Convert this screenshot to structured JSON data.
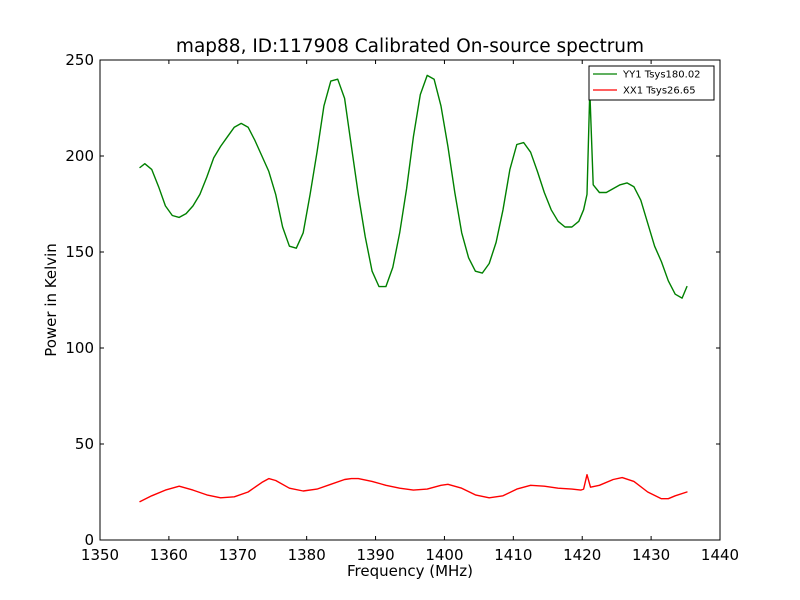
{
  "chart_data": {
    "type": "line",
    "title": "map88, ID:117908 Calibrated On-source spectrum",
    "xlabel": "Frequency (MHz)",
    "ylabel": "Power in Kelvin",
    "xlim": [
      1350,
      1440
    ],
    "ylim": [
      0,
      250
    ],
    "xticks": [
      "1350",
      "1360",
      "1370",
      "1380",
      "1390",
      "1400",
      "1410",
      "1420",
      "1430",
      "1440"
    ],
    "yticks": [
      "0",
      "50",
      "100",
      "150",
      "200",
      "250"
    ],
    "grid": false,
    "legend_position": "top-right",
    "series": [
      {
        "name": "YY1 Tsys180.02",
        "color": "#008000",
        "x": [
          1355.8,
          1356.5,
          1357.5,
          1358.5,
          1359.5,
          1360.5,
          1361.5,
          1362.5,
          1363.5,
          1364.5,
          1365.5,
          1366.5,
          1367.5,
          1368.5,
          1369.5,
          1370.5,
          1371.5,
          1372.5,
          1373.5,
          1374.5,
          1375.5,
          1376.5,
          1377.5,
          1378.5,
          1379.5,
          1380.5,
          1381.5,
          1382.5,
          1383.5,
          1384.5,
          1385.5,
          1386.5,
          1387.5,
          1388.5,
          1389.5,
          1390.5,
          1391.5,
          1392.5,
          1393.5,
          1394.5,
          1395.5,
          1396.5,
          1397.5,
          1398.5,
          1399.5,
          1400.5,
          1401.5,
          1402.5,
          1403.5,
          1404.5,
          1405.5,
          1406.5,
          1407.5,
          1408.5,
          1409.5,
          1410.5,
          1411.5,
          1412.5,
          1413.5,
          1414.5,
          1415.5,
          1416.5,
          1417.5,
          1418.5,
          1419.5,
          1420.2,
          1420.7,
          1421.1,
          1421.6,
          1422.5,
          1423.5,
          1424.5,
          1425.5,
          1426.5,
          1427.5,
          1428.5,
          1429.5,
          1430.5,
          1431.5,
          1432.5,
          1433.5,
          1434.5,
          1435.2
        ],
        "y": [
          194,
          196,
          193,
          184,
          174,
          169,
          168,
          170,
          174,
          180,
          189,
          199,
          205,
          210,
          215,
          217,
          215,
          208,
          200,
          192,
          180,
          163,
          153,
          152,
          160,
          180,
          202,
          226,
          239,
          240,
          230,
          205,
          180,
          158,
          140,
          132,
          132,
          142,
          160,
          183,
          210,
          232,
          242,
          240,
          226,
          205,
          181,
          160,
          147,
          140,
          139,
          144,
          155,
          172,
          193,
          206,
          207,
          202,
          192,
          181,
          172,
          166,
          163,
          163,
          166,
          172,
          180,
          234,
          185,
          181,
          181,
          183,
          185,
          186,
          184,
          177,
          165,
          153,
          145,
          135,
          128,
          126,
          132
        ]
      },
      {
        "name": "XX1 Tsys26.65",
        "color": "#ff0000",
        "x": [
          1355.8,
          1357.5,
          1359.5,
          1361.5,
          1363.5,
          1365.5,
          1367.5,
          1369.5,
          1371.5,
          1373.5,
          1374.5,
          1375.5,
          1377.5,
          1379.5,
          1381.5,
          1383.5,
          1385.5,
          1386.5,
          1387.5,
          1389.5,
          1391.5,
          1393.5,
          1395.5,
          1397.5,
          1399.5,
          1400.5,
          1402.5,
          1404.5,
          1406.5,
          1408.5,
          1410.5,
          1412.5,
          1414.5,
          1416.5,
          1418.5,
          1419.8,
          1420.2,
          1420.7,
          1421.2,
          1422.5,
          1424.5,
          1425.8,
          1427.5,
          1429.5,
          1431.5,
          1432.5,
          1433.5,
          1435.2
        ],
        "y": [
          20,
          23,
          26,
          28,
          26,
          23.5,
          22,
          22.5,
          25,
          30,
          32,
          31,
          27,
          25.5,
          26.5,
          29,
          31.5,
          32,
          32,
          30.5,
          28.5,
          27,
          26,
          26.5,
          28.5,
          29,
          27,
          23.5,
          22,
          23,
          26.5,
          28.5,
          28,
          27,
          26.5,
          26,
          26.5,
          34,
          27.5,
          28.5,
          31.5,
          32.5,
          30.5,
          25,
          21.5,
          21.5,
          23,
          25
        ]
      }
    ]
  }
}
